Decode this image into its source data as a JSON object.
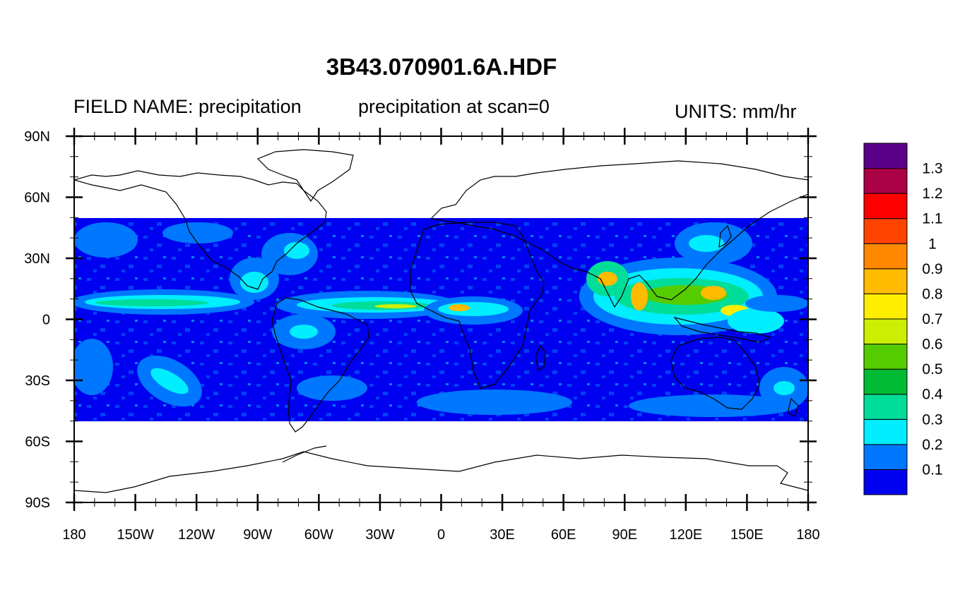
{
  "title": "3B43.070901.6A.HDF",
  "left_label": "FIELD NAME: precipitation",
  "center_label": "precipitation at scan=0",
  "right_label": "UNITS: mm/hr",
  "map": {
    "projection": "cylindrical-equidistant",
    "lon_range": [
      -180,
      180
    ],
    "lat_range": [
      -90,
      90
    ],
    "data_lat_range": [
      -50,
      50
    ],
    "coastlines": true,
    "x_ticks": [
      {
        "lon": -180,
        "label": "180"
      },
      {
        "lon": -150,
        "label": "150W"
      },
      {
        "lon": -120,
        "label": "120W"
      },
      {
        "lon": -90,
        "label": "90W"
      },
      {
        "lon": -60,
        "label": "60W"
      },
      {
        "lon": -30,
        "label": "30W"
      },
      {
        "lon": 0,
        "label": "0"
      },
      {
        "lon": 30,
        "label": "30E"
      },
      {
        "lon": 60,
        "label": "60E"
      },
      {
        "lon": 90,
        "label": "90E"
      },
      {
        "lon": 120,
        "label": "120E"
      },
      {
        "lon": 150,
        "label": "150E"
      },
      {
        "lon": 180,
        "label": "180"
      }
    ],
    "y_ticks": [
      {
        "lat": 90,
        "label": "90N"
      },
      {
        "lat": 60,
        "label": "60N"
      },
      {
        "lat": 30,
        "label": "30N"
      },
      {
        "lat": 0,
        "label": "0"
      },
      {
        "lat": -30,
        "label": "30S"
      },
      {
        "lat": -60,
        "label": "60S"
      },
      {
        "lat": -90,
        "label": "90S"
      }
    ]
  },
  "colorbar": {
    "colors": [
      "#0000f0",
      "#0077ff",
      "#00eeff",
      "#00dd99",
      "#00bb33",
      "#55cc00",
      "#ccee00",
      "#ffee00",
      "#ffbb00",
      "#ff8800",
      "#ff4400",
      "#ff0000",
      "#aa0044",
      "#5a0088"
    ],
    "labels": [
      "0.1",
      "0.2",
      "0.3",
      "0.4",
      "0.5",
      "0.6",
      "0.7",
      "0.8",
      "0.9",
      "1",
      "1.1",
      "1.2",
      "1.3"
    ]
  }
}
